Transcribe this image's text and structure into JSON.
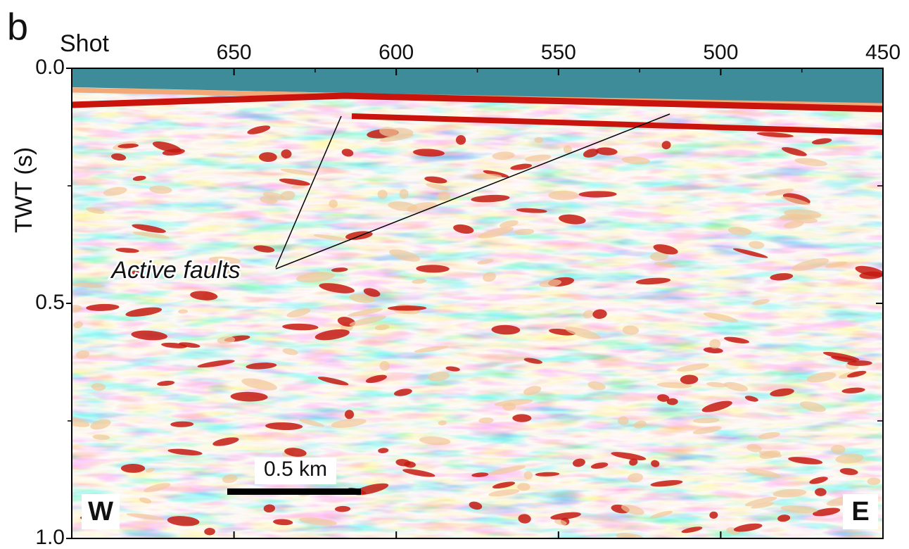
{
  "panel_label": "b",
  "chart_data": {
    "type": "seismic-section",
    "x_label": "Shot",
    "y_label": "TWT (s)",
    "xlim": [
      700,
      450
    ],
    "xticks": [
      650,
      600,
      550,
      500,
      450
    ],
    "ylim": [
      0,
      1
    ],
    "yticks": [
      {
        "value": 0,
        "label": "0.0"
      },
      {
        "value": 0.5,
        "label": "0.5"
      },
      {
        "value": 1,
        "label": "1.0"
      }
    ],
    "annotation": "Active faults",
    "scale_bar": "0.5 km",
    "direction_labels": [
      "W",
      "E"
    ]
  }
}
